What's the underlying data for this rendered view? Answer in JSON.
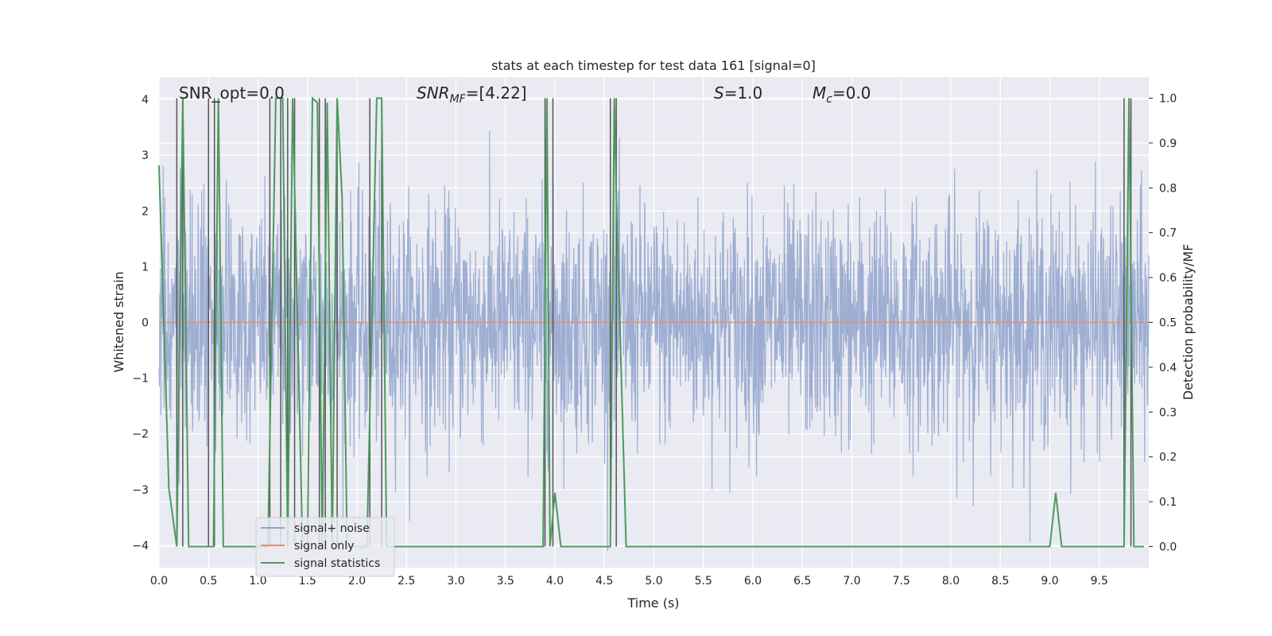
{
  "chart_data": {
    "type": "line",
    "title": "stats at each timestep for test data 161 [signal=0]",
    "xlabel": "Time (s)",
    "ylabel": "Whitened strain",
    "y2label": "Detection probability/MF",
    "xlim": [
      0.0,
      10.0
    ],
    "ylim": [
      -4.4,
      4.4
    ],
    "y2lim": [
      -0.047,
      1.047
    ],
    "xticks": [
      "0.0",
      "0.5",
      "1.0",
      "1.5",
      "2.0",
      "2.5",
      "3.0",
      "3.5",
      "4.0",
      "4.5",
      "5.0",
      "5.5",
      "6.0",
      "6.5",
      "7.0",
      "7.5",
      "8.0",
      "8.5",
      "9.0",
      "9.5"
    ],
    "yticks": [
      "4",
      "3",
      "2",
      "1",
      "0",
      "−1",
      "−2",
      "−3",
      "−4"
    ],
    "y2ticks": [
      "1.0",
      "0.9",
      "0.8",
      "0.7",
      "0.6",
      "0.5",
      "0.4",
      "0.3",
      "0.2",
      "0.1",
      "0.0"
    ],
    "grid": true,
    "legend_position": "lower-left",
    "annotations": {
      "snr_opt": "SNR_opt=0.0",
      "snr_mf_main": "SNR",
      "snr_mf_sub": "MF",
      "snr_mf_rest": "=[4.22]",
      "s_main": "S",
      "s_rest": "=1.0",
      "mc_main": "M",
      "mc_sub": "c",
      "mc_rest": "=0.0"
    },
    "series": [
      {
        "name": "signal+ noise",
        "color": "#8fa3cd",
        "description_values": "dense whitened noise, approx. gaussian, range -4 to 4"
      },
      {
        "name": "signal only",
        "color": "#e0926d",
        "values_constant": 0.0
      },
      {
        "name": "signal statistics",
        "color": "#4c9a5c",
        "x": [
          0.0,
          0.1,
          0.18,
          0.24,
          0.3,
          0.55,
          0.6,
          0.65,
          1.0,
          1.1,
          1.18,
          1.25,
          1.3,
          1.35,
          1.45,
          1.5,
          1.55,
          1.6,
          1.65,
          1.7,
          1.75,
          1.8,
          1.85,
          1.9,
          2.1,
          2.2,
          2.25,
          2.3,
          3.88,
          3.92,
          3.95,
          4.0,
          4.06,
          4.18,
          4.56,
          4.6,
          4.62,
          4.72,
          9.0,
          9.06,
          9.12,
          9.75,
          9.8,
          9.85,
          9.88,
          9.95
        ],
        "y": [
          0.85,
          0.13,
          0.0,
          1.0,
          0.0,
          0.0,
          1.0,
          0.0,
          0.0,
          0.0,
          1.0,
          1.0,
          0.0,
          1.0,
          0.0,
          0.0,
          1.0,
          0.99,
          0.0,
          0.99,
          0.0,
          1.0,
          0.78,
          0.0,
          0.0,
          1.0,
          1.0,
          0.0,
          0.0,
          1.0,
          0.0,
          0.12,
          0.0,
          0.0,
          0.0,
          1.0,
          0.78,
          0.0,
          0.0,
          0.12,
          0.0,
          0.0,
          1.0,
          0.0,
          0.0,
          0.0
        ]
      }
    ],
    "vertical_markers": {
      "color": "#555555",
      "x": [
        0.18,
        0.24,
        0.5,
        0.56,
        1.12,
        1.23,
        1.3,
        1.37,
        1.62,
        1.68,
        1.8,
        2.13,
        2.25,
        3.9,
        3.98,
        4.56,
        4.62,
        9.75,
        9.82
      ]
    },
    "legend": {
      "items": [
        "signal+ noise",
        "signal only",
        "signal statistics"
      ]
    }
  }
}
